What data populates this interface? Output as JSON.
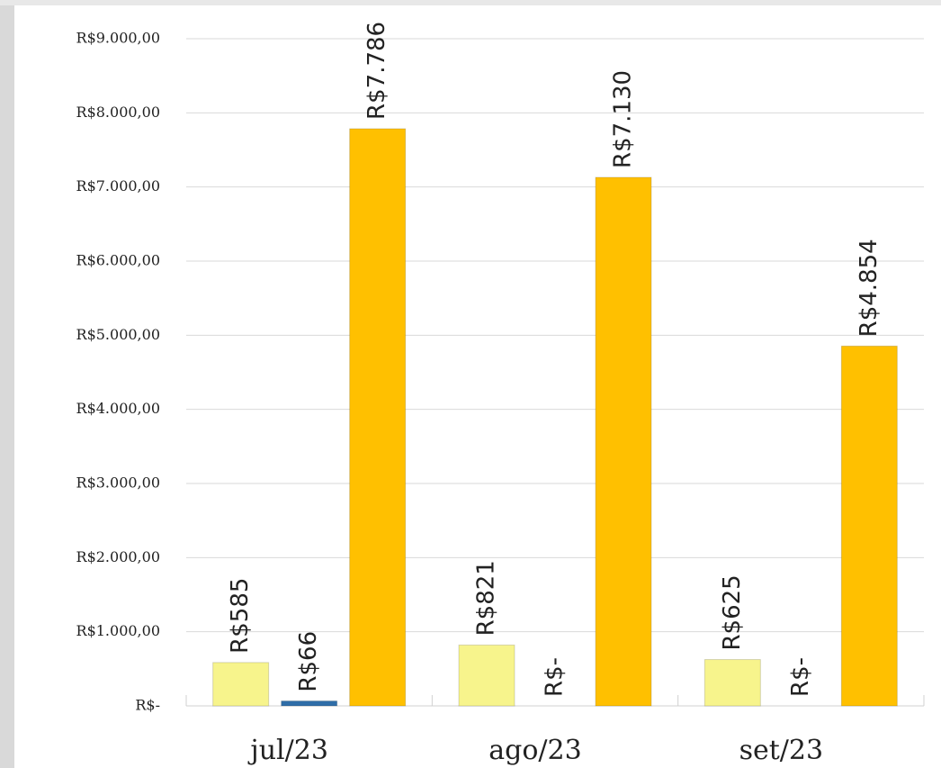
{
  "chart_data": {
    "type": "bar",
    "categories": [
      "jul/23",
      "ago/23",
      "set/23"
    ],
    "series": [
      {
        "color": "#f7f48c",
        "values": [
          585,
          821,
          625
        ],
        "value_labels": [
          "R$585",
          "R$821",
          "R$625"
        ]
      },
      {
        "color": "#2f6ea8",
        "values": [
          66,
          0,
          0
        ],
        "value_labels": [
          "R$66",
          "R$-",
          "R$-"
        ]
      },
      {
        "color": "#ffc000",
        "values": [
          7786,
          7130,
          4854
        ],
        "value_labels": [
          "R$7.786",
          "R$7.130",
          "R$4.854"
        ]
      }
    ],
    "ylim": [
      0,
      9000
    ],
    "yticks": [
      {
        "value": 0,
        "label": "R$-"
      },
      {
        "value": 1000,
        "label": "R$1.000,00"
      },
      {
        "value": 2000,
        "label": "R$2.000,00"
      },
      {
        "value": 3000,
        "label": "R$3.000,00"
      },
      {
        "value": 4000,
        "label": "R$4.000,00"
      },
      {
        "value": 5000,
        "label": "R$5.000,00"
      },
      {
        "value": 6000,
        "label": "R$6.000,00"
      },
      {
        "value": 7000,
        "label": "R$7.000,00"
      },
      {
        "value": 8000,
        "label": "R$8.000,00"
      },
      {
        "value": 9000,
        "label": "R$9.000,00"
      }
    ],
    "grid": true
  }
}
